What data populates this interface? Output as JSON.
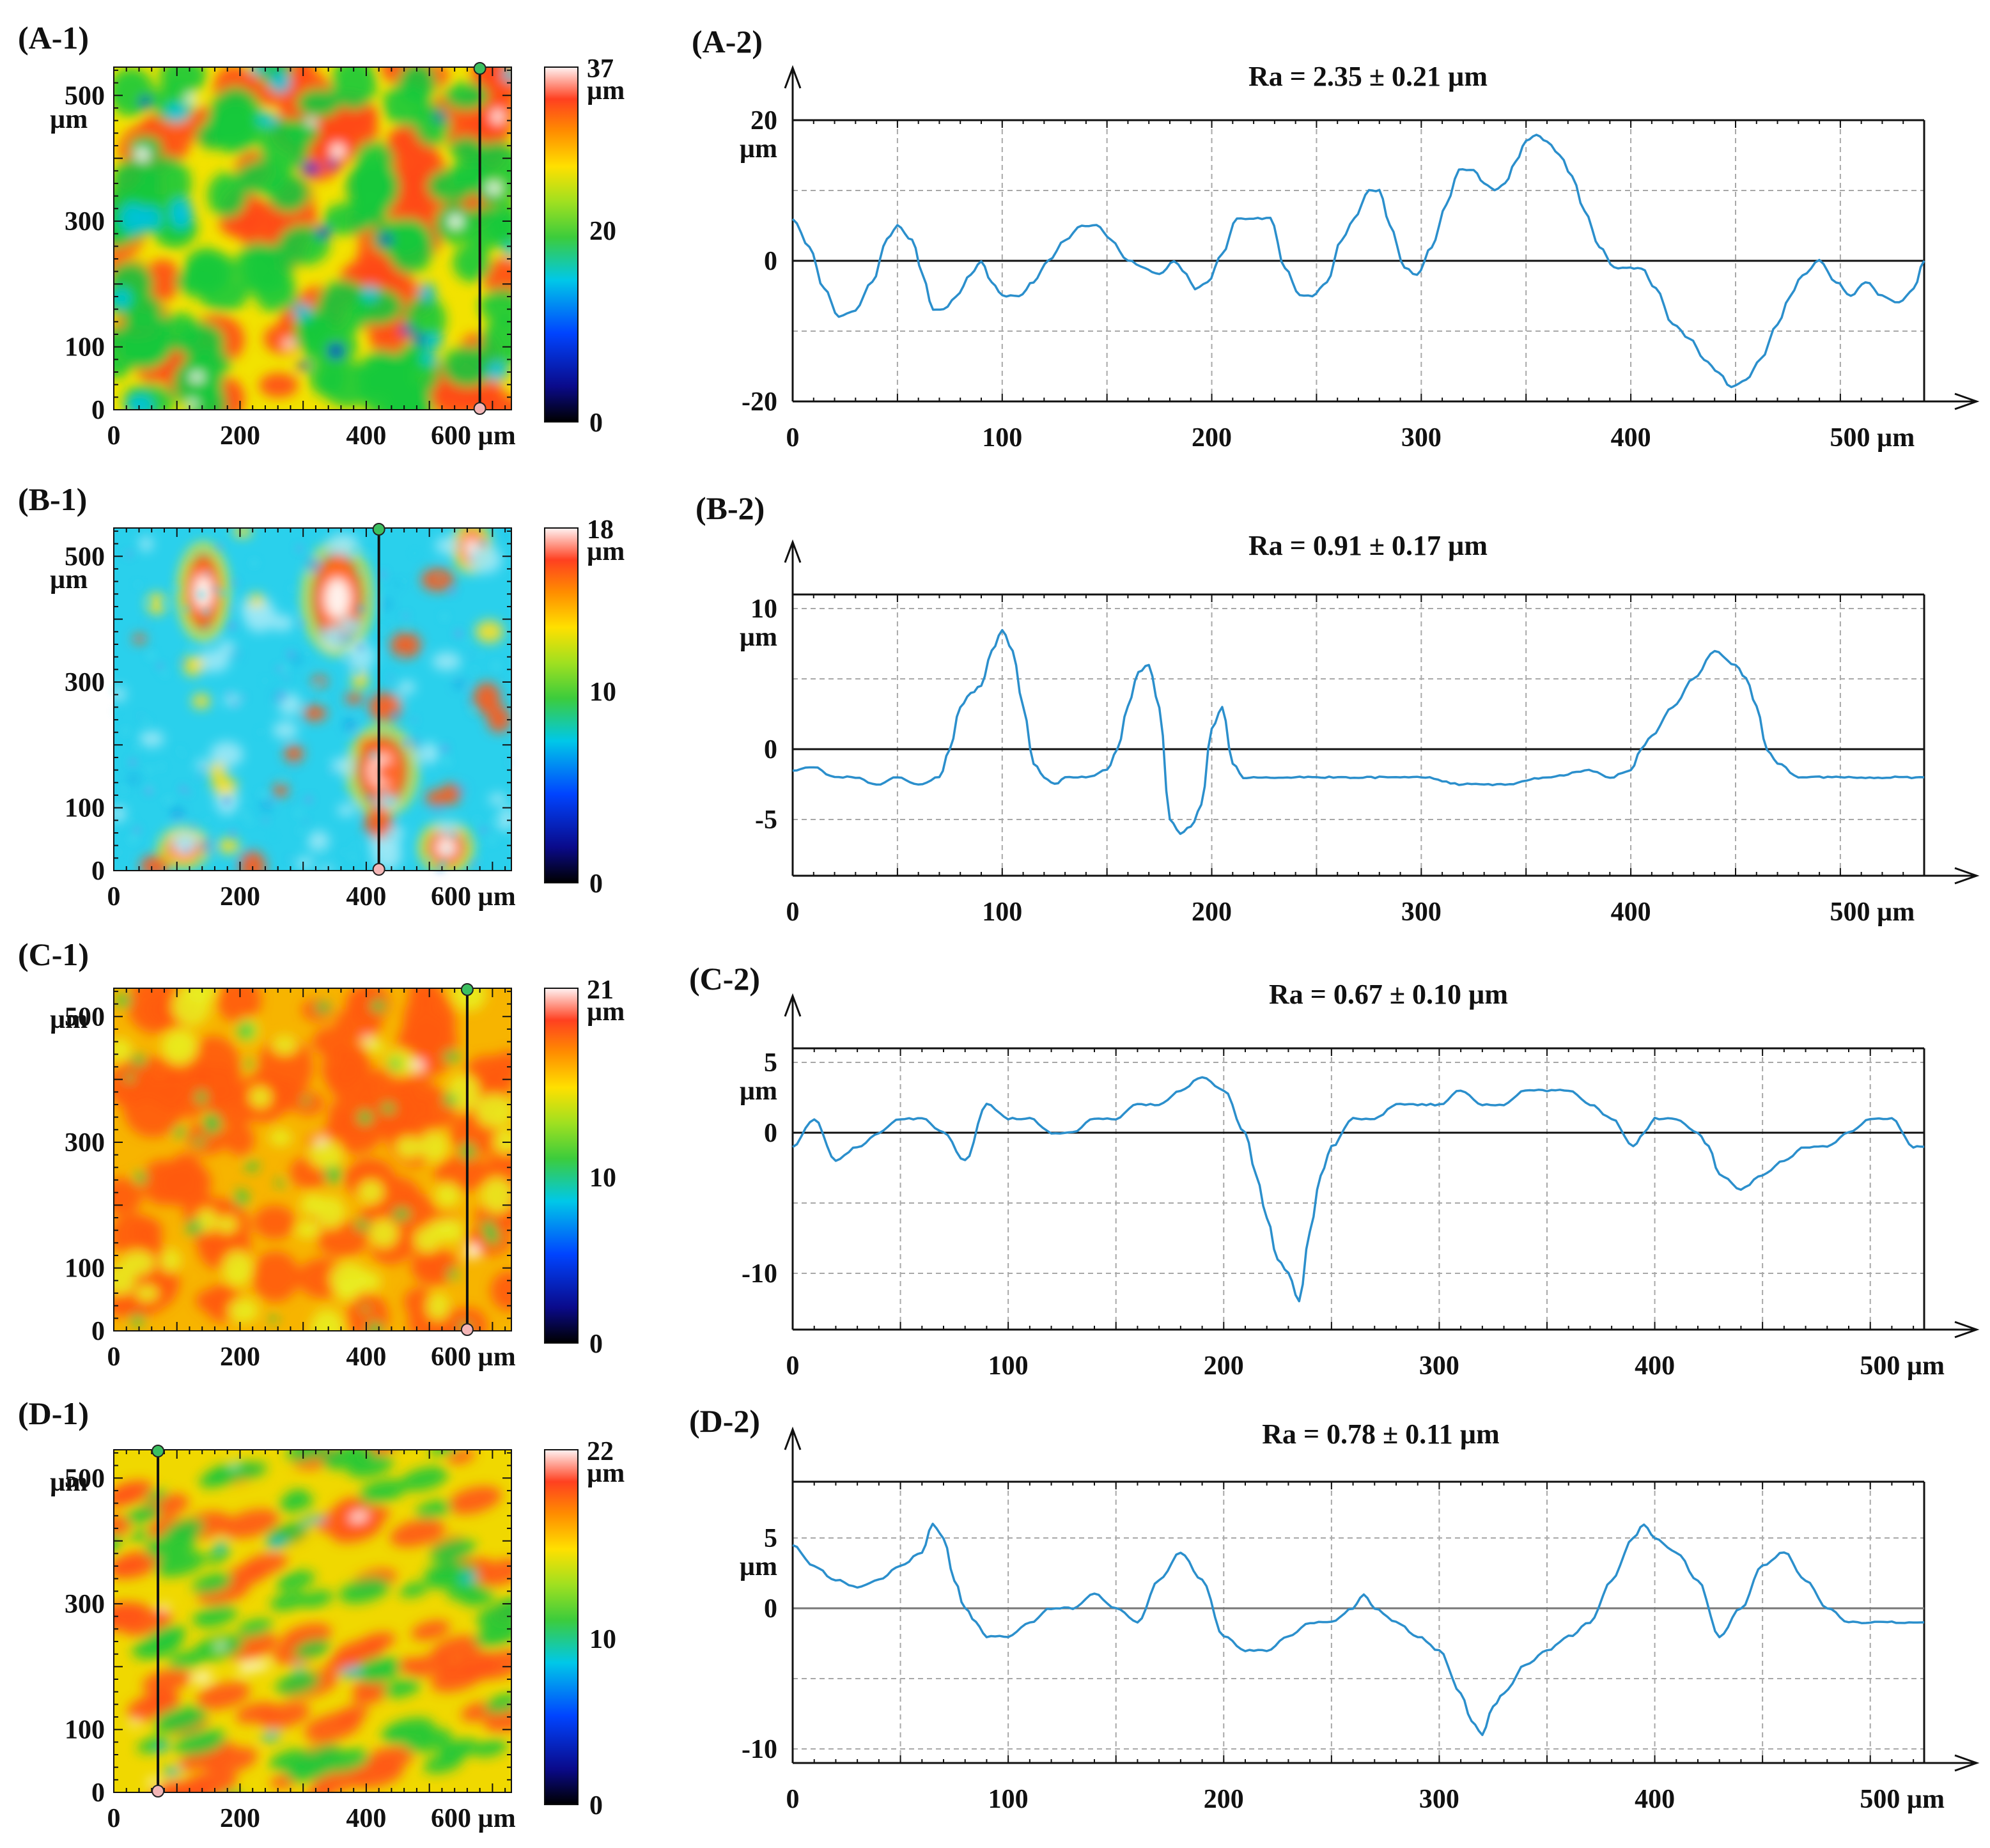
{
  "panels": [
    {
      "id": "A",
      "map": {
        "label": "(A-1)",
        "x_ticks": [
          "0",
          "200",
          "400",
          "600 µm"
        ],
        "x_tick_values": [
          0,
          200,
          400,
          600
        ],
        "y_ticks": [
          "0",
          "100",
          "300",
          "500"
        ],
        "y_tick_values": [
          0,
          100,
          300,
          500
        ],
        "y_unit": "µm",
        "scan_line_x": 580,
        "colorbar": {
          "max_label": "37",
          "unit": "µm",
          "mid_label": "20",
          "min_label": "0",
          "max": 37,
          "mid": 20,
          "min": 0
        },
        "texture": "A"
      },
      "chart": {
        "label": "(A-2)",
        "title": "Ra = 2.35 ± 0.21 µm",
        "type": "line",
        "xlim": [
          0,
          540
        ],
        "ylim": [
          -20,
          20
        ],
        "x_ticks": [
          "0",
          "100",
          "200",
          "300",
          "400",
          "500 µm"
        ],
        "x_tick_values": [
          0,
          100,
          200,
          300,
          400,
          500
        ],
        "y_ticks": [
          "20",
          "0",
          "-20"
        ],
        "y_tick_values": [
          20,
          0,
          -20
        ],
        "y_unit": "µm",
        "series": [
          {
            "name": "profile",
            "x": [
              0,
              8,
              15,
              22,
              30,
              38,
              45,
              50,
              57,
              62,
              67,
              72,
              78,
              85,
              90,
              95,
              100,
              108,
              115,
              122,
              130,
              138,
              145,
              152,
              160,
              168,
              175,
              182,
              188,
              192,
              198,
              205,
              212,
              220,
              228,
              235,
              242,
              248,
              255,
              262,
              268,
              275,
              280,
              285,
              292,
              298,
              305,
              312,
              318,
              325,
              330,
              335,
              340,
              345,
              350,
              355,
              360,
              366,
              372,
              378,
              385,
              392,
              398,
              405,
              412,
              420,
              428,
              435,
              442,
              448,
              455,
              462,
              470,
              476,
              482,
              490,
              498,
              505,
              512,
              520,
              528,
              535,
              540
            ],
            "y": [
              6,
              2,
              -4,
              -8,
              -7,
              -3,
              3,
              5,
              3,
              -2,
              -7,
              -7,
              -5,
              -2,
              0,
              -3,
              -5,
              -5,
              -3,
              0,
              3,
              5,
              5,
              3,
              0,
              -1,
              -2,
              0,
              -2,
              -4,
              -3,
              1,
              6,
              6,
              6,
              -1,
              -5,
              -5,
              -3,
              3,
              6,
              10,
              10,
              5,
              -1,
              -2,
              2,
              8,
              13,
              13,
              11,
              10,
              11,
              14,
              17,
              18,
              17,
              15,
              12,
              7,
              2,
              -1,
              -1,
              -1,
              -4,
              -9,
              -11,
              -14,
              -16,
              -18,
              -17,
              -14,
              -9,
              -5,
              -2,
              0,
              -3,
              -5,
              -3,
              -5,
              -6,
              -4,
              0
            ]
          }
        ]
      }
    },
    {
      "id": "B",
      "map": {
        "label": "(B-1)",
        "x_ticks": [
          "0",
          "200",
          "400",
          "600 µm"
        ],
        "x_tick_values": [
          0,
          200,
          400,
          600
        ],
        "y_ticks": [
          "0",
          "100",
          "300",
          "500"
        ],
        "y_tick_values": [
          0,
          100,
          300,
          500
        ],
        "y_unit": "µm",
        "scan_line_x": 420,
        "colorbar": {
          "max_label": "18",
          "unit": "µm",
          "mid_label": "10",
          "min_label": "0",
          "max": 18,
          "mid": 10,
          "min": 0
        },
        "texture": "B"
      },
      "chart": {
        "label": "(B-2)",
        "title": "Ra = 0.91 ± 0.17 µm",
        "type": "line",
        "xlim": [
          0,
          540
        ],
        "ylim": [
          -9,
          11
        ],
        "x_ticks": [
          "0",
          "100",
          "200",
          "300",
          "400",
          "500 µm"
        ],
        "x_tick_values": [
          0,
          100,
          200,
          300,
          400,
          500
        ],
        "y_ticks": [
          "10",
          "0",
          "-5"
        ],
        "y_tick_values": [
          10,
          0,
          -5
        ],
        "y_unit": "µm",
        "series": [
          {
            "name": "profile",
            "x": [
              0,
              10,
              20,
              30,
              40,
              50,
              60,
              70,
              75,
              80,
              85,
              90,
              95,
              100,
              105,
              110,
              115,
              120,
              125,
              130,
              140,
              150,
              155,
              160,
              165,
              170,
              175,
              180,
              185,
              190,
              195,
              200,
              205,
              210,
              215,
              220,
              240,
              260,
              280,
              300,
              320,
              340,
              360,
              380,
              390,
              400,
              405,
              410,
              420,
              430,
              440,
              450,
              455,
              460,
              465,
              470,
              480,
              500,
              520,
              540
            ],
            "y": [
              -1.5,
              -1.3,
              -2,
              -2,
              -2.5,
              -2,
              -2.5,
              -2,
              0,
              3,
              4,
              4.5,
              7,
              8.5,
              7,
              3,
              -1,
              -2,
              -2.5,
              -2,
              -2,
              -1.5,
              0,
              3,
              5.5,
              6,
              3,
              -5,
              -6,
              -5.5,
              -4,
              1.5,
              3,
              -1,
              -2,
              -2,
              -2,
              -2,
              -2,
              -2,
              -2.5,
              -2.5,
              -2,
              -1.5,
              -2,
              -1.5,
              0,
              1,
              3,
              5,
              7,
              6,
              5,
              3,
              0,
              -1,
              -2,
              -2,
              -2,
              -2
            ]
          }
        ]
      }
    },
    {
      "id": "C",
      "map": {
        "label": "(C-1)",
        "x_ticks": [
          "0",
          "200",
          "400",
          "600 µm"
        ],
        "x_tick_values": [
          0,
          200,
          400,
          600
        ],
        "y_ticks": [
          "0",
          "100",
          "300",
          "500"
        ],
        "y_tick_values": [
          0,
          100,
          300,
          500
        ],
        "y_unit": "µm",
        "scan_line_x": 560,
        "colorbar": {
          "max_label": "21",
          "unit": "µm",
          "mid_label": "10",
          "min_label": "0",
          "max": 21,
          "mid": 10,
          "min": 0
        },
        "texture": "C"
      },
      "chart": {
        "label": "(C-2)",
        "title": "Ra = 0.67 ± 0.10 µm",
        "type": "line",
        "xlim": [
          0,
          525
        ],
        "ylim": [
          -14,
          6
        ],
        "x_ticks": [
          "0",
          "100",
          "200",
          "300",
          "400",
          "500 µm"
        ],
        "x_tick_values": [
          0,
          100,
          200,
          300,
          400,
          500
        ],
        "y_ticks": [
          "5",
          "0",
          "-10"
        ],
        "y_tick_values": [
          5,
          0,
          -10
        ],
        "y_unit": "µm",
        "series": [
          {
            "name": "profile",
            "x": [
              0,
              10,
              20,
              30,
              40,
              50,
              60,
              70,
              80,
              90,
              100,
              110,
              120,
              130,
              140,
              150,
              160,
              170,
              180,
              190,
              200,
              210,
              215,
              220,
              225,
              230,
              235,
              240,
              245,
              250,
              260,
              270,
              280,
              290,
              300,
              310,
              320,
              330,
              340,
              350,
              360,
              370,
              380,
              390,
              395,
              400,
              410,
              420,
              425,
              430,
              440,
              450,
              460,
              470,
              480,
              490,
              500,
              510,
              520,
              525
            ],
            "y": [
              -1,
              1,
              -2,
              -1,
              0,
              1,
              1,
              0,
              -2,
              2,
              1,
              1,
              0,
              0,
              1,
              1,
              2,
              2,
              3,
              4,
              3,
              0,
              -3,
              -6,
              -9,
              -10,
              -12,
              -7,
              -3,
              -1,
              1,
              1,
              2,
              2,
              2,
              3,
              2,
              2,
              3,
              3,
              3,
              2,
              1,
              -1,
              0,
              1,
              1,
              0,
              -1,
              -3,
              -4,
              -3,
              -2,
              -1,
              -1,
              0,
              1,
              1,
              -1,
              -1
            ]
          }
        ]
      }
    },
    {
      "id": "D",
      "map": {
        "label": "(D-1)",
        "x_ticks": [
          "0",
          "200",
          "400",
          "600 µm"
        ],
        "x_tick_values": [
          0,
          200,
          400,
          600
        ],
        "y_ticks": [
          "0",
          "100",
          "300",
          "500"
        ],
        "y_tick_values": [
          0,
          100,
          300,
          500
        ],
        "y_unit": "µm",
        "scan_line_x": 70,
        "colorbar": {
          "max_label": "22",
          "unit": "µm",
          "mid_label": "10",
          "min_label": "0",
          "max": 22,
          "mid": 10,
          "min": 0
        },
        "texture": "D"
      },
      "chart": {
        "label": "(D-2)",
        "title": "Ra = 0.78 ± 0.11 µm",
        "type": "line",
        "xlim": [
          0,
          525
        ],
        "ylim": [
          -11,
          9
        ],
        "x_ticks": [
          "0",
          "100",
          "200",
          "300",
          "400",
          "500 µm"
        ],
        "x_tick_values": [
          0,
          100,
          200,
          300,
          400,
          500
        ],
        "y_ticks": [
          "5",
          "0",
          "-10"
        ],
        "y_tick_values": [
          5,
          0,
          -10
        ],
        "y_unit": "µm",
        "series": [
          {
            "name": "profile",
            "x": [
              0,
              10,
              20,
              30,
              40,
              50,
              60,
              65,
              70,
              75,
              80,
              85,
              90,
              100,
              110,
              120,
              130,
              140,
              150,
              160,
              170,
              180,
              190,
              200,
              210,
              220,
              230,
              240,
              250,
              260,
              265,
              270,
              280,
              290,
              300,
              310,
              315,
              320,
              325,
              330,
              340,
              350,
              360,
              370,
              380,
              390,
              395,
              400,
              410,
              420,
              430,
              440,
              450,
              460,
              470,
              480,
              490,
              500,
              510,
              520,
              525
            ],
            "y": [
              4.5,
              3,
              2,
              1.5,
              2,
              3,
              4,
              6,
              5,
              2,
              0,
              -1,
              -2,
              -2,
              -1,
              0,
              0,
              1,
              0,
              -1,
              2,
              4,
              2,
              -2,
              -3,
              -3,
              -2,
              -1,
              -1,
              0,
              1,
              0,
              -1,
              -2,
              -3,
              -6,
              -8,
              -9,
              -7,
              -6,
              -4,
              -3,
              -2,
              -1,
              2,
              5,
              6,
              5,
              4,
              2,
              -2,
              0,
              3,
              4,
              2,
              0,
              -1,
              -1,
              -1,
              -1,
              -1
            ]
          }
        ]
      }
    }
  ],
  "colors": {
    "profile": "#2b8fcc",
    "axis": "#111111",
    "grid": "#a8a8a8"
  }
}
